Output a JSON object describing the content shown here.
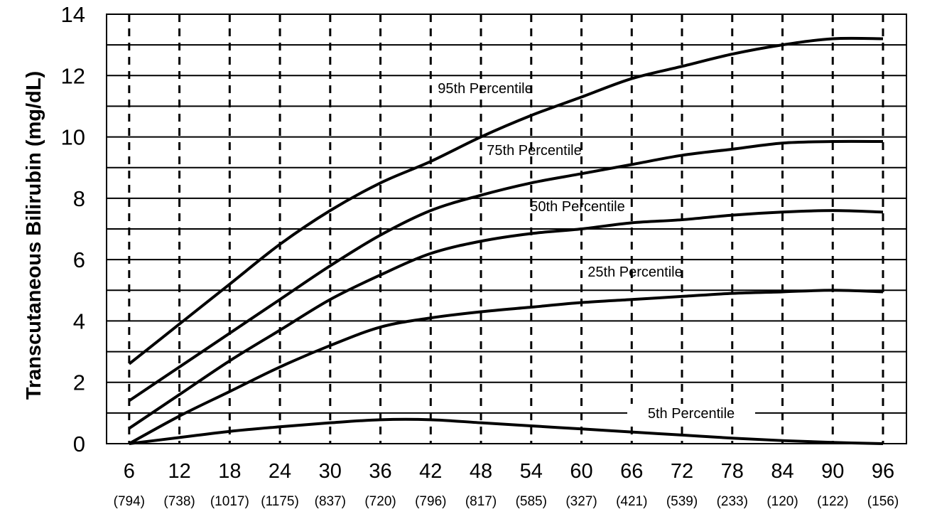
{
  "chart_data": {
    "type": "line",
    "title": "",
    "xlabel": "",
    "ylabel": "Transcutaneous Bilirubin (mg/dL)",
    "x": [
      6,
      12,
      18,
      24,
      30,
      36,
      42,
      48,
      54,
      60,
      66,
      72,
      78,
      84,
      90,
      96
    ],
    "x_tick_labels": [
      "6",
      "12",
      "18",
      "24",
      "30",
      "36",
      "42",
      "48",
      "54",
      "60",
      "66",
      "72",
      "78",
      "84",
      "90",
      "96"
    ],
    "x_sublabels": [
      "(794)",
      "(738)",
      "(1017)",
      "(1175)",
      "(837)",
      "(720)",
      "(796)",
      "(817)",
      "(585)",
      "(327)",
      "(421)",
      "(539)",
      "(233)",
      "(120)",
      "(122)",
      "(156)"
    ],
    "y_ticks": [
      0,
      2,
      4,
      6,
      8,
      10,
      12,
      14
    ],
    "y_tick_labels": [
      "0",
      "2",
      "4",
      "6",
      "8",
      "10",
      "12",
      "14"
    ],
    "ylim": [
      0,
      14
    ],
    "xlim": [
      3.3,
      98.8
    ],
    "grid": {
      "horizontal_every": 1,
      "vertical": "dashed"
    },
    "series": [
      {
        "name": "95th Percentile",
        "values": [
          2.6,
          3.9,
          5.2,
          6.5,
          7.6,
          8.5,
          9.2,
          10.0,
          10.7,
          11.3,
          11.9,
          12.3,
          12.7,
          13.0,
          13.2,
          13.2
        ]
      },
      {
        "name": "75th Percentile",
        "values": [
          1.4,
          2.5,
          3.6,
          4.7,
          5.8,
          6.8,
          7.6,
          8.1,
          8.5,
          8.8,
          9.1,
          9.4,
          9.6,
          9.8,
          9.85,
          9.85
        ]
      },
      {
        "name": "50th Percentile",
        "values": [
          0.5,
          1.6,
          2.7,
          3.7,
          4.7,
          5.5,
          6.2,
          6.6,
          6.85,
          7.0,
          7.2,
          7.3,
          7.45,
          7.55,
          7.6,
          7.55
        ]
      },
      {
        "name": "25th Percentile",
        "values": [
          0.0,
          0.9,
          1.7,
          2.5,
          3.2,
          3.8,
          4.1,
          4.3,
          4.45,
          4.6,
          4.7,
          4.8,
          4.9,
          4.95,
          5.0,
          4.95
        ]
      },
      {
        "name": "5th Percentile",
        "values": [
          0.0,
          0.2,
          0.4,
          0.55,
          0.68,
          0.78,
          0.78,
          0.68,
          0.58,
          0.48,
          0.38,
          0.28,
          0.18,
          0.1,
          0.04,
          0.0
        ]
      }
    ],
    "line_color": "#000000",
    "background": "#ffffff"
  }
}
